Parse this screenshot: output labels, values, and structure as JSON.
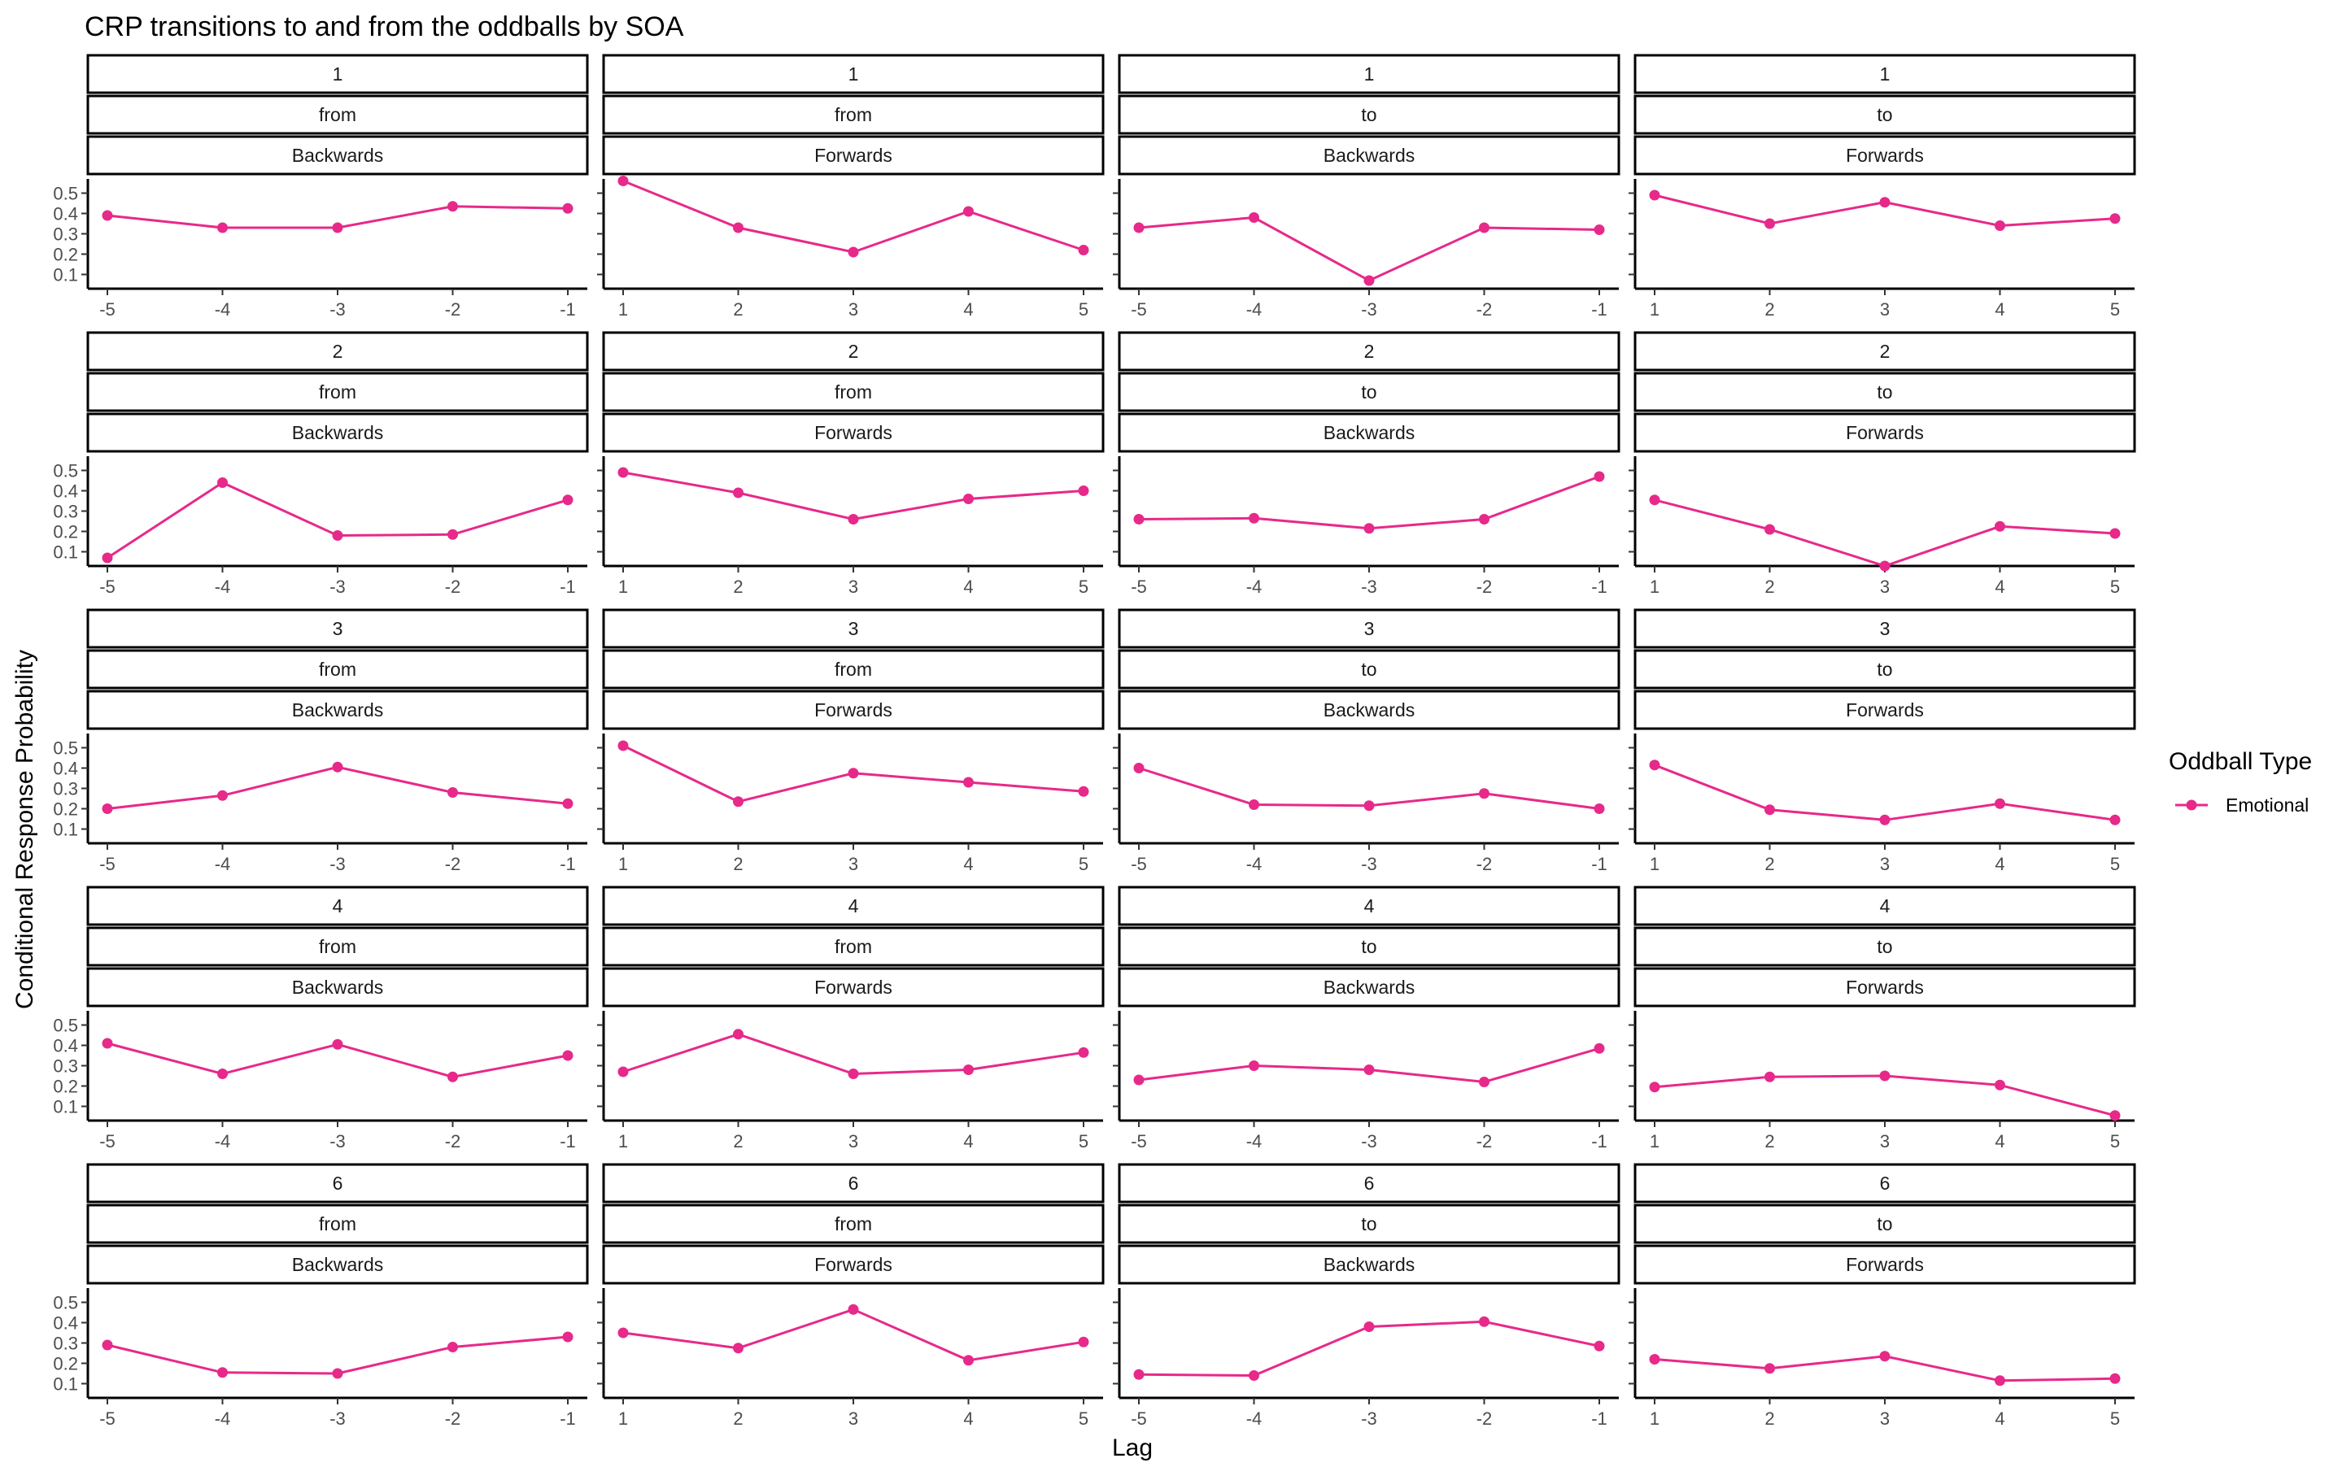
{
  "chart_data": {
    "type": "line",
    "title": "CRP transitions to and from the oddballs by SOA",
    "xlabel": "Lag",
    "ylabel": "Conditional Response Probability",
    "ylim": [
      0.03,
      0.57
    ],
    "yticks": [
      0.1,
      0.2,
      0.3,
      0.4,
      0.5
    ],
    "ytick_labels": [
      "0.1",
      "0.2",
      "0.3",
      "0.4",
      "0.5"
    ],
    "legend": {
      "title": "Oddball Type",
      "placement": "right",
      "entries": [
        {
          "label": "Emotional",
          "color": "#e7298a"
        }
      ]
    },
    "series_color": "#e7298a",
    "panels": [
      {
        "soa": "1",
        "dir": "from",
        "direction": "Backwards",
        "x": [
          -5,
          -4,
          -3,
          -2,
          -1
        ],
        "y": [
          0.39,
          0.33,
          0.33,
          0.435,
          0.425
        ]
      },
      {
        "soa": "1",
        "dir": "from",
        "direction": "Forwards",
        "x": [
          1,
          2,
          3,
          4,
          5
        ],
        "y": [
          0.56,
          0.33,
          0.21,
          0.41,
          0.22
        ]
      },
      {
        "soa": "1",
        "dir": "to",
        "direction": "Backwards",
        "x": [
          -5,
          -4,
          -3,
          -2,
          -1
        ],
        "y": [
          0.33,
          0.38,
          0.07,
          0.33,
          0.32
        ]
      },
      {
        "soa": "1",
        "dir": "to",
        "direction": "Forwards",
        "x": [
          1,
          2,
          3,
          4,
          5
        ],
        "y": [
          0.49,
          0.35,
          0.455,
          0.34,
          0.375
        ]
      },
      {
        "soa": "2",
        "dir": "from",
        "direction": "Backwards",
        "x": [
          -5,
          -4,
          -3,
          -2,
          -1
        ],
        "y": [
          0.07,
          0.44,
          0.18,
          0.185,
          0.355
        ]
      },
      {
        "soa": "2",
        "dir": "from",
        "direction": "Forwards",
        "x": [
          1,
          2,
          3,
          4,
          5
        ],
        "y": [
          0.49,
          0.39,
          0.26,
          0.36,
          0.4
        ]
      },
      {
        "soa": "2",
        "dir": "to",
        "direction": "Backwards",
        "x": [
          -5,
          -4,
          -3,
          -2,
          -1
        ],
        "y": [
          0.26,
          0.265,
          0.215,
          0.26,
          0.47
        ]
      },
      {
        "soa": "2",
        "dir": "to",
        "direction": "Forwards",
        "x": [
          1,
          2,
          3,
          4,
          5
        ],
        "y": [
          0.355,
          0.21,
          0.03,
          0.225,
          0.19
        ]
      },
      {
        "soa": "3",
        "dir": "from",
        "direction": "Backwards",
        "x": [
          -5,
          -4,
          -3,
          -2,
          -1
        ],
        "y": [
          0.2,
          0.265,
          0.405,
          0.28,
          0.225
        ]
      },
      {
        "soa": "3",
        "dir": "from",
        "direction": "Forwards",
        "x": [
          1,
          2,
          3,
          4,
          5
        ],
        "y": [
          0.51,
          0.235,
          0.375,
          0.33,
          0.285
        ]
      },
      {
        "soa": "3",
        "dir": "to",
        "direction": "Backwards",
        "x": [
          -5,
          -4,
          -3,
          -2,
          -1
        ],
        "y": [
          0.4,
          0.22,
          0.215,
          0.275,
          0.2
        ]
      },
      {
        "soa": "3",
        "dir": "to",
        "direction": "Forwards",
        "x": [
          1,
          2,
          3,
          4,
          5
        ],
        "y": [
          0.415,
          0.195,
          0.145,
          0.225,
          0.145
        ]
      },
      {
        "soa": "4",
        "dir": "from",
        "direction": "Backwards",
        "x": [
          -5,
          -4,
          -3,
          -2,
          -1
        ],
        "y": [
          0.41,
          0.26,
          0.405,
          0.245,
          0.35
        ]
      },
      {
        "soa": "4",
        "dir": "from",
        "direction": "Forwards",
        "x": [
          1,
          2,
          3,
          4,
          5
        ],
        "y": [
          0.27,
          0.455,
          0.26,
          0.28,
          0.365
        ]
      },
      {
        "soa": "4",
        "dir": "to",
        "direction": "Backwards",
        "x": [
          -5,
          -4,
          -3,
          -2,
          -1
        ],
        "y": [
          0.23,
          0.3,
          0.28,
          0.22,
          0.385
        ]
      },
      {
        "soa": "4",
        "dir": "to",
        "direction": "Forwards",
        "x": [
          1,
          2,
          3,
          4,
          5
        ],
        "y": [
          0.195,
          0.245,
          0.25,
          0.205,
          0.055
        ]
      },
      {
        "soa": "6",
        "dir": "from",
        "direction": "Backwards",
        "x": [
          -5,
          -4,
          -3,
          -2,
          -1
        ],
        "y": [
          0.29,
          0.155,
          0.15,
          0.28,
          0.33
        ]
      },
      {
        "soa": "6",
        "dir": "from",
        "direction": "Forwards",
        "x": [
          1,
          2,
          3,
          4,
          5
        ],
        "y": [
          0.35,
          0.275,
          0.465,
          0.215,
          0.305
        ]
      },
      {
        "soa": "6",
        "dir": "to",
        "direction": "Backwards",
        "x": [
          -5,
          -4,
          -3,
          -2,
          -1
        ],
        "y": [
          0.145,
          0.14,
          0.38,
          0.405,
          0.285
        ]
      },
      {
        "soa": "6",
        "dir": "to",
        "direction": "Forwards",
        "x": [
          1,
          2,
          3,
          4,
          5
        ],
        "y": [
          0.22,
          0.175,
          0.235,
          0.115,
          0.125
        ]
      }
    ]
  }
}
